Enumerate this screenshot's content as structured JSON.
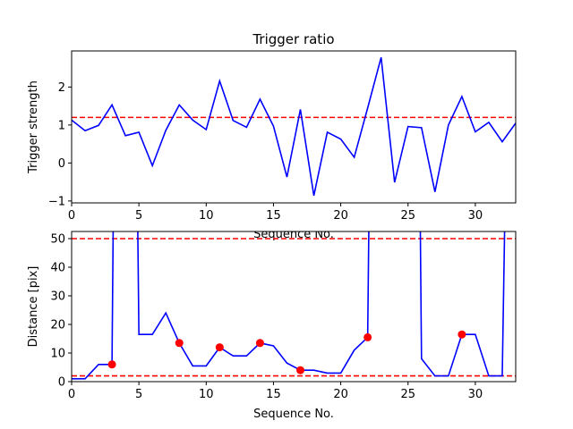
{
  "chart_data": [
    {
      "type": "line",
      "title": "Trigger ratio",
      "xlabel": "Sequence No.",
      "ylabel": "Trigger strength",
      "xlim": [
        0,
        33
      ],
      "ylim": [
        -1.05,
        2.95
      ],
      "xticks": [
        0,
        5,
        10,
        15,
        20,
        25,
        30
      ],
      "yticks": [
        -1,
        0,
        1,
        2
      ],
      "colors": {
        "line": "#0000ff",
        "threshold": "#ff0000"
      },
      "grid": false,
      "series": [
        {
          "x": [
            0,
            1,
            2,
            3,
            4,
            5,
            6,
            7,
            8,
            9,
            10,
            11,
            12,
            13,
            14,
            15,
            16,
            17,
            18,
            19,
            20,
            21,
            22,
            23,
            24,
            25,
            26,
            27,
            28,
            29,
            30,
            31,
            32,
            33
          ],
          "values": [
            1.13,
            0.85,
            0.99,
            1.53,
            0.72,
            0.81,
            -0.07,
            0.86,
            1.53,
            1.13,
            0.88,
            2.16,
            1.12,
            0.94,
            1.68,
            0.97,
            -0.37,
            1.41,
            -0.86,
            0.81,
            0.63,
            0.15,
            1.45,
            2.78,
            -0.51,
            0.96,
            0.93,
            -0.76,
            1.0,
            1.75,
            0.82,
            1.07,
            0.56,
            1.05
          ]
        }
      ],
      "hlines": [
        1.2
      ]
    },
    {
      "type": "line",
      "title": "",
      "xlabel": "Sequence No.",
      "ylabel": "Distance [pix]",
      "xlim": [
        0,
        33
      ],
      "ylim": [
        0,
        52.5
      ],
      "xticks": [
        0,
        5,
        10,
        15,
        20,
        25,
        30
      ],
      "yticks": [
        0,
        10,
        20,
        30,
        40,
        50
      ],
      "colors": {
        "line": "#0000ff",
        "threshold": "#ff0000",
        "markers": "#ff0000"
      },
      "grid": false,
      "series": [
        {
          "x": [
            0,
            1,
            2,
            3,
            3.1,
            4.9,
            5,
            6,
            7,
            8,
            9,
            10,
            11,
            12,
            13,
            14,
            15,
            16,
            17,
            18,
            19,
            20,
            21,
            22,
            22.1,
            25.9,
            26,
            27,
            28,
            29,
            30,
            31,
            32,
            32.2
          ],
          "values": [
            1,
            1,
            6,
            6,
            60,
            60,
            16.5,
            16.5,
            24,
            13.5,
            5.5,
            5.5,
            12,
            9,
            9,
            13.5,
            12.5,
            6.5,
            4,
            4,
            3,
            3,
            11,
            15.5,
            60,
            60,
            8,
            2,
            2,
            16.5,
            16.5,
            2,
            2,
            60
          ]
        }
      ],
      "markers": {
        "x": [
          3,
          8,
          11,
          14,
          17,
          22,
          29
        ],
        "values": [
          6,
          13.5,
          12,
          13.5,
          4,
          15.5,
          16.5
        ]
      },
      "hlines": [
        50,
        2
      ]
    }
  ]
}
